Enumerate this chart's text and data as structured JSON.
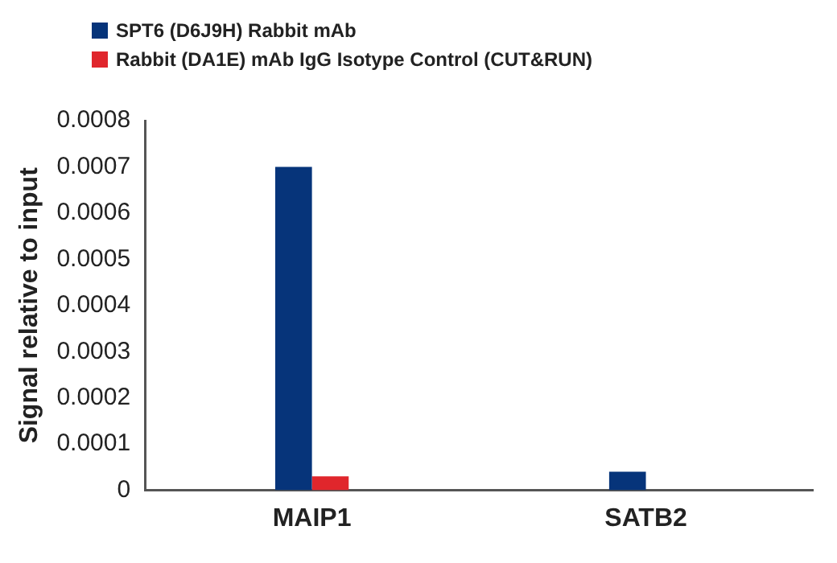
{
  "chart_data": {
    "type": "bar",
    "ylabel": "Signal relative to input",
    "categories": [
      "MAIP1",
      "SATB2"
    ],
    "series": [
      {
        "name": "SPT6 (D6J9H) Rabbit mAb",
        "color": "#06347a",
        "values": [
          0.0007,
          4e-05
        ]
      },
      {
        "name": "Rabbit (DA1E) mAb IgG Isotype Control (CUT&RUN)",
        "color": "#e0262c",
        "values": [
          3e-05,
          null
        ]
      }
    ],
    "ylim": [
      0,
      0.0008
    ],
    "yticks": [
      0,
      0.0001,
      0.0002,
      0.0003,
      0.0004,
      0.0005,
      0.0006,
      0.0007,
      0.0008
    ],
    "grid": false,
    "legend": "top left"
  }
}
